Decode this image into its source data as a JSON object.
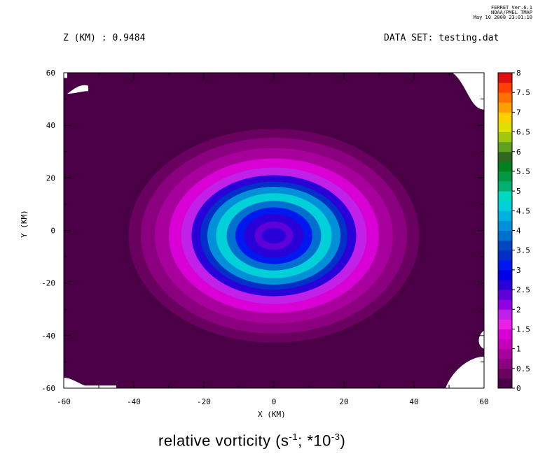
{
  "header": {
    "z_label": "Z (KM) : 0.9484",
    "dataset_label": "DATA SET: testing.dat",
    "credit_line1": "FERRET  Ver.6.1",
    "credit_line2": "NOAA/PMEL TMAP",
    "credit_line3": "May 10 2008 23:01:10"
  },
  "chart_data": {
    "type": "heatmap",
    "title_text": "relative vorticity (s",
    "title_sup1": "-1",
    "title_mid": "; *10",
    "title_sup2": "-3",
    "title_end": ")",
    "xlabel": "X (KM)",
    "ylabel": "Y (KM)",
    "xlim": [
      -60,
      60
    ],
    "ylim": [
      -60,
      60
    ],
    "x_ticks": [
      -60,
      -40,
      -20,
      0,
      20,
      40,
      60
    ],
    "y_ticks": [
      60,
      40,
      20,
      0,
      -20,
      -40,
      -60
    ],
    "colorbar_ticks": [
      "8",
      "7.5",
      "7",
      "6.5",
      "6",
      "5.5",
      "5",
      "4.5",
      "4",
      "3.5",
      "3",
      "2.5",
      "2",
      "1.5",
      "1",
      "0.5",
      "0"
    ],
    "levels": [
      0,
      0.25,
      0.5,
      0.75,
      1,
      1.25,
      1.5,
      1.75,
      2,
      2.25,
      2.5,
      2.75,
      3,
      3.25,
      3.5,
      3.75,
      4,
      4.25,
      4.5,
      4.75,
      5,
      5.25,
      5.5,
      5.75,
      6,
      6.25,
      6.5,
      6.75,
      7,
      7.25,
      7.5,
      7.75,
      8
    ],
    "level_colors": [
      "#4a0044",
      "#6a0060",
      "#8a007e",
      "#a8009c",
      "#c400bb",
      "#d800d4",
      "#e820e8",
      "#c020e8",
      "#9000e0",
      "#6000d8",
      "#2a00d8",
      "#0000e8",
      "#0018f0",
      "#0030c8",
      "#0048c0",
      "#0070d0",
      "#0090d8",
      "#00b0e0",
      "#00d0d8",
      "#00d8c0",
      "#00b070",
      "#009840",
      "#008020",
      "#306820",
      "#60a020",
      "#a0c810",
      "#e0e000",
      "#ffd000",
      "#ffa000",
      "#ff7000",
      "#ff4000",
      "#e01010",
      "#a00000",
      "#600000"
    ],
    "vortex": {
      "center": [
        0,
        -2
      ],
      "radial_profile": [
        {
          "r": 0,
          "value": 2.2
        },
        {
          "r": 4,
          "value": 2.3
        },
        {
          "r": 7,
          "value": 2.6
        },
        {
          "r": 10,
          "value": 3.2
        },
        {
          "r": 12,
          "value": 3.9
        },
        {
          "r": 15,
          "value": 4.6
        },
        {
          "r": 18,
          "value": 4.0
        },
        {
          "r": 20,
          "value": 3.4
        },
        {
          "r": 22,
          "value": 2.6
        },
        {
          "r": 25,
          "value": 1.9
        },
        {
          "r": 28,
          "value": 1.3
        },
        {
          "r": 32,
          "value": 0.9
        },
        {
          "r": 36,
          "value": 0.6
        },
        {
          "r": 40,
          "value": 0.35
        },
        {
          "r": 43,
          "value": 0.0
        }
      ]
    },
    "missing_regions": [
      "top-left corner",
      "top-right corner",
      "bottom-left edge",
      "bottom-right corner"
    ]
  }
}
